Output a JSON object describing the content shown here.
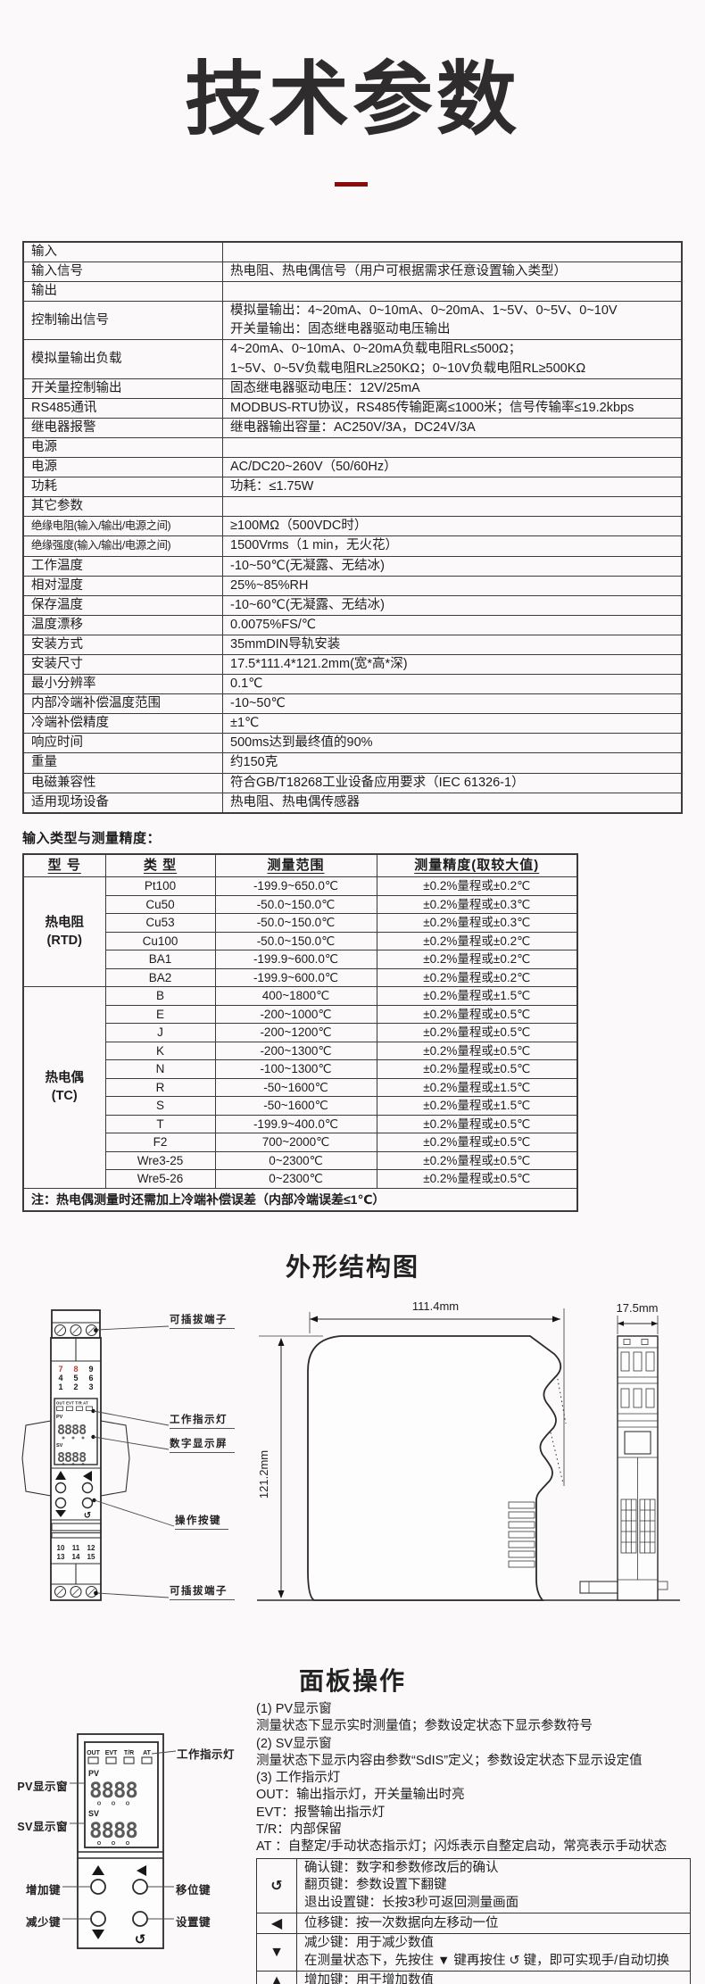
{
  "page": {
    "title": "技术参数"
  },
  "colors": {
    "accent": "#8b0a0a",
    "terminal_red": "#c0392b"
  },
  "icons": {
    "loop": "↺",
    "up": "▲",
    "down": "▼",
    "left": "◀"
  },
  "spec_table": {
    "rows": [
      {
        "label": "输入",
        "lines": [],
        "section": true
      },
      {
        "label": "输入信号",
        "lines": [
          "热电阻、热电偶信号（用户可根据需求任意设置输入类型）"
        ]
      },
      {
        "label": "输出",
        "lines": [],
        "section": true
      },
      {
        "label": "控制输出信号",
        "lines": [
          "模拟量输出：4~20mA、0~10mA、0~20mA、1~5V、0~5V、0~10V",
          "开关量输出：固态继电器驱动电压输出"
        ]
      },
      {
        "label": "模拟量输出负载",
        "lines": [
          "4~20mA、0~10mA、0~20mA负载电阻RL≤500Ω；",
          "1~5V、0~5V负载电阻RL≥250KΩ；0~10V负载电阻RL≥500KΩ"
        ]
      },
      {
        "label": "开关量控制输出",
        "lines": [
          "固态继电器驱动电压：12V/25mA"
        ]
      },
      {
        "label": "RS485通讯",
        "lines": [
          "MODBUS-RTU协议，RS485传输距离≤1000米；信号传输率≤19.2kbps"
        ]
      },
      {
        "label": "继电器报警",
        "lines": [
          "继电器输出容量：AC250V/3A，DC24V/3A"
        ]
      },
      {
        "label": "电源",
        "lines": [],
        "section": true
      },
      {
        "label": "电源",
        "lines": [
          "AC/DC20~260V（50/60Hz）"
        ]
      },
      {
        "label": "功耗",
        "lines": [
          "功耗：≤1.75W"
        ]
      },
      {
        "label": "其它参数",
        "lines": [],
        "section": true
      },
      {
        "label": "绝缘电阻(输入/输出/电源之间)",
        "lines": [
          "≥100MΩ（500VDC时）"
        ]
      },
      {
        "label": "绝缘强度(输入/输出/电源之间)",
        "lines": [
          "1500Vrms（1 min，无火花）"
        ]
      },
      {
        "label": "工作温度",
        "lines": [
          "-10~50℃(无凝露、无结冰)"
        ]
      },
      {
        "label": "相对湿度",
        "lines": [
          "25%~85%RH"
        ]
      },
      {
        "label": "保存温度",
        "lines": [
          "-10~60℃(无凝露、无结冰)"
        ]
      },
      {
        "label": "温度漂移",
        "lines": [
          "0.0075%FS/℃"
        ]
      },
      {
        "label": "安装方式",
        "lines": [
          "35mmDIN导轨安装"
        ]
      },
      {
        "label": "安装尺寸",
        "lines": [
          "17.5*111.4*121.2mm(宽*高*深)"
        ]
      },
      {
        "label": "最小分辨率",
        "lines": [
          "0.1℃"
        ]
      },
      {
        "label": "内部冷端补偿温度范围",
        "lines": [
          "-10~50℃"
        ]
      },
      {
        "label": "冷端补偿精度",
        "lines": [
          "±1℃"
        ]
      },
      {
        "label": "响应时间",
        "lines": [
          "500ms达到最终值的90%"
        ]
      },
      {
        "label": "重量",
        "lines": [
          "约150克"
        ]
      },
      {
        "label": "电磁兼容性",
        "lines": [
          "符合GB/T18268工业设备应用要求（IEC 61326-1）"
        ]
      },
      {
        "label": "适用现场设备",
        "lines": [
          "热电阻、热电偶传感器"
        ]
      }
    ]
  },
  "input_types": {
    "caption": "输入类型与测量精度：",
    "headers": [
      "型 号",
      "类 型",
      "测量范围",
      "测量精度(取较大值)"
    ],
    "groups": [
      {
        "name": "热电阻",
        "abbr": "(RTD)",
        "rows": [
          [
            "Pt100",
            "-199.9~650.0℃",
            "±0.2%量程或±0.2℃"
          ],
          [
            "Cu50",
            "-50.0~150.0℃",
            "±0.2%量程或±0.3℃"
          ],
          [
            "Cu53",
            "-50.0~150.0℃",
            "±0.2%量程或±0.3℃"
          ],
          [
            "Cu100",
            "-50.0~150.0℃",
            "±0.2%量程或±0.2℃"
          ],
          [
            "BA1",
            "-199.9~600.0℃",
            "±0.2%量程或±0.2℃"
          ],
          [
            "BA2",
            "-199.9~600.0℃",
            "±0.2%量程或±0.2℃"
          ]
        ]
      },
      {
        "name": "热电偶",
        "abbr": "(TC)",
        "rows": [
          [
            "B",
            "400~1800℃",
            "±0.2%量程或±1.5℃"
          ],
          [
            "E",
            "-200~1000℃",
            "±0.2%量程或±0.5℃"
          ],
          [
            "J",
            "-200~1200℃",
            "±0.2%量程或±0.5℃"
          ],
          [
            "K",
            "-200~1300℃",
            "±0.2%量程或±0.5℃"
          ],
          [
            "N",
            "-100~1300℃",
            "±0.2%量程或±0.5℃"
          ],
          [
            "R",
            "-50~1600℃",
            "±0.2%量程或±1.5℃"
          ],
          [
            "S",
            "-50~1600℃",
            "±0.2%量程或±1.5℃"
          ],
          [
            "T",
            "-199.9~400.0℃",
            "±0.2%量程或±0.5℃"
          ],
          [
            "F2",
            "700~2000℃",
            "±0.2%量程或±0.5℃"
          ],
          [
            "Wre3-25",
            "0~2300℃",
            "±0.2%量程或±0.5℃"
          ],
          [
            "Wre5-26",
            "0~2300℃",
            "±0.2%量程或±0.5℃"
          ]
        ]
      }
    ],
    "note": "注：热电偶测量时还需加上冷端补偿误差（内部冷端误差≤1℃）"
  },
  "structure": {
    "heading": "外形结构图",
    "dims": {
      "width": "111.4mm",
      "height": "121.2mm",
      "depth": "17.5mm"
    },
    "callouts": {
      "terminal_top": "可插拔端子",
      "indicator": "工作指示灯",
      "display": "数字显示屏",
      "keys": "操作按键",
      "terminal_bottom": "可插拔端子"
    },
    "front": {
      "leds": "OUT EVT T/R AT",
      "pv": "PV",
      "sv": "SV",
      "digits": "8888",
      "top_terms": [
        [
          "7",
          "8",
          "9"
        ],
        [
          "4",
          "5",
          "6"
        ],
        [
          "1",
          "2",
          "3"
        ]
      ],
      "bottom_terms": [
        [
          "10",
          "11",
          "12"
        ],
        [
          "13",
          "14",
          "15"
        ]
      ]
    }
  },
  "panel": {
    "heading": "面板操作",
    "labels": {
      "indicator": "工作指示灯",
      "pv": "PV显示窗",
      "sv": "SV显示窗",
      "inc": "增加键",
      "dec": "减少键",
      "shift": "移位键",
      "set": "设置键"
    },
    "display": {
      "leds": [
        "OUT",
        "EVT",
        "T/R",
        "AT"
      ],
      "pv": "PV",
      "sv": "SV",
      "digits": "8888"
    },
    "notes": [
      "(1) PV显示窗",
      "测量状态下显示实时测量值；参数设定状态下显示参数符号",
      "(2) SV显示窗",
      "测量状态下显示内容由参数“SdIS”定义；参数设定状态下显示设定值",
      "(3) 工作指示灯",
      "OUT：输出指示灯，开关量输出时亮",
      "EVT：报警输出指示灯",
      "T/R：内部保留",
      "AT ：自整定/手动状态指示灯；闪烁表示自整定启动，常亮表示手动状态"
    ],
    "key_table": [
      {
        "icon": "↺",
        "lines": [
          "确认键：数字和参数修改后的确认",
          "翻页键：参数设置下翻键",
          "退出设置键：长按3秒可返回测量画面"
        ]
      },
      {
        "icon": "◀",
        "lines": [
          "位移键：按一次数据向左移动一位"
        ]
      },
      {
        "icon": "▼",
        "lines": [
          "减少键：用于减少数值",
          "在测量状态下，先按住 ▼ 键再按住 ↺ 键，即可实现手/自动切换"
        ]
      },
      {
        "icon": "▲",
        "lines": [
          "增加键：用于增加数值"
        ]
      }
    ]
  }
}
